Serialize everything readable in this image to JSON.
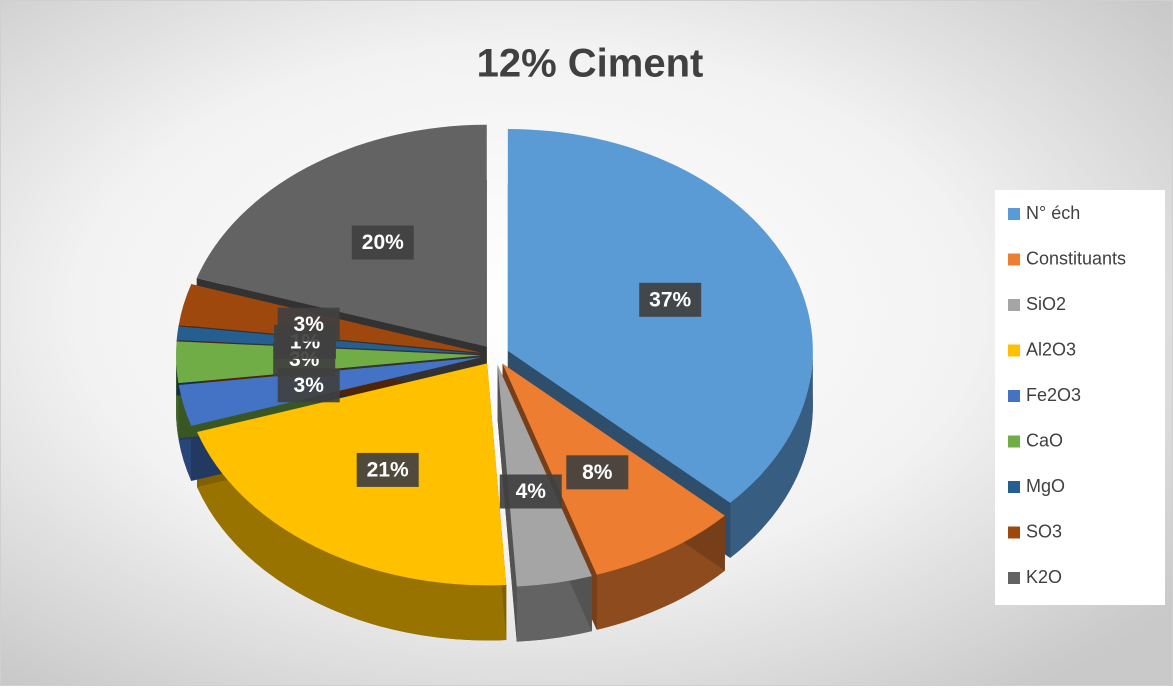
{
  "chart_data": {
    "type": "pie",
    "title": "12% Ciment",
    "categories": [
      "N° éch",
      "Constituants",
      "SiO2",
      "Al2O3",
      "Fe2O3",
      "CaO",
      "MgO",
      "SO3",
      "K2O"
    ],
    "values": [
      37,
      8,
      4,
      21,
      3,
      3,
      1,
      3,
      20
    ],
    "value_labels": [
      "37%",
      "8%",
      "4%",
      "21%",
      "3%",
      "3%",
      "1%",
      "3%",
      "20%"
    ],
    "colors": [
      "#5b9bd5",
      "#ed7d31",
      "#a5a5a5",
      "#ffc000",
      "#4472c4",
      "#70ad47",
      "#255e91",
      "#9e480e",
      "#636363"
    ],
    "legend": "right"
  }
}
